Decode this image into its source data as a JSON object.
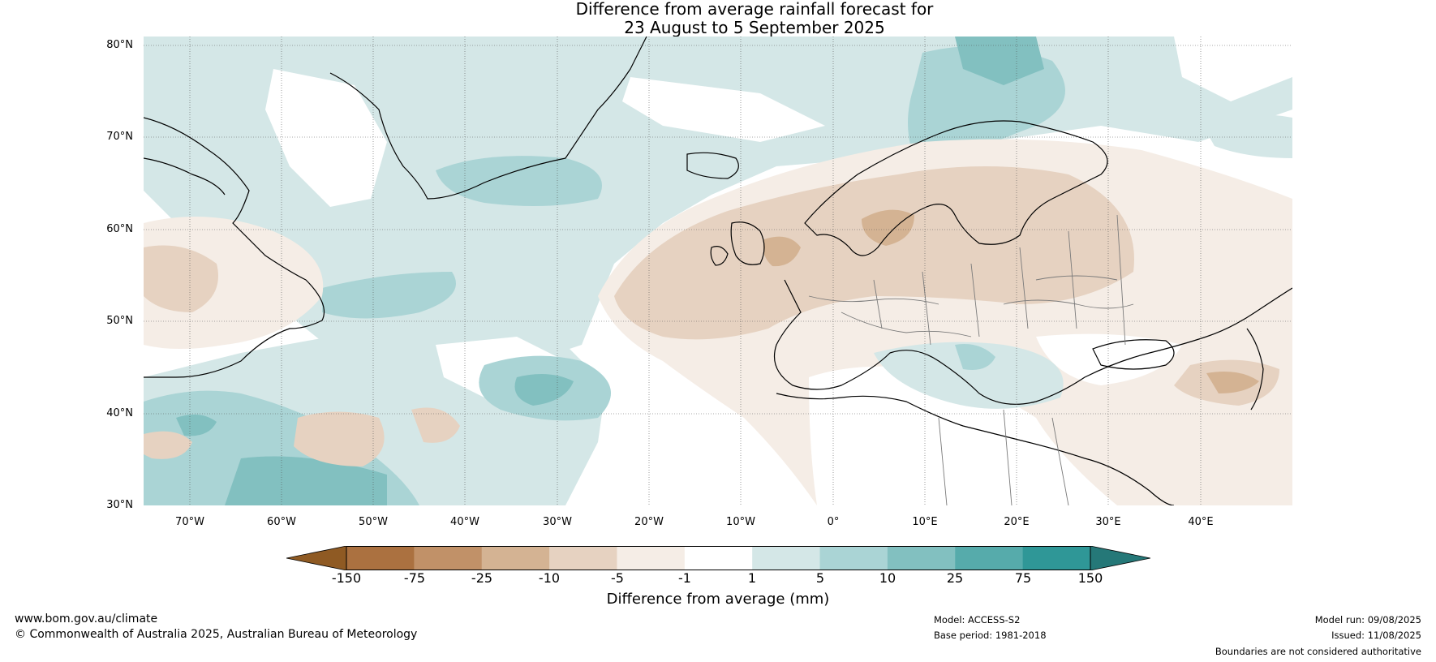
{
  "title": {
    "line1": "Difference from average rainfall forecast for",
    "line2": "23 August to 5 September 2025"
  },
  "map": {
    "projection": "equirectangular",
    "lon_range": [
      -75,
      50
    ],
    "lat_range": [
      30,
      81
    ],
    "lat_ticks": [
      "80°N",
      "70°N",
      "60°N",
      "50°N",
      "40°N",
      "30°N"
    ],
    "lon_ticks": [
      "70°W",
      "60°W",
      "50°W",
      "40°W",
      "30°W",
      "20°W",
      "10°W",
      "0°",
      "10°E",
      "20°E",
      "30°E",
      "40°E"
    ],
    "gridlines": true,
    "regions": [
      {
        "name": "north-america-dry",
        "category": "-5 to -1"
      },
      {
        "name": "greenland-sea-wet",
        "category": "1 to 5"
      },
      {
        "name": "north-atlantic-wet",
        "category": "1 to 5"
      },
      {
        "name": "subtropical-atlantic-wet",
        "category": "10 to 25"
      },
      {
        "name": "scandinavia-dry",
        "category": "-10 to -5"
      },
      {
        "name": "eastern-europe-dry",
        "category": "-10 to -5"
      },
      {
        "name": "caspian-dry",
        "category": "-25 to -10"
      },
      {
        "name": "norway-coast-wet",
        "category": "5 to 10"
      },
      {
        "name": "italy-balkans-wet",
        "category": "1 to 5"
      }
    ]
  },
  "colorbar": {
    "label": "Difference from average (mm)",
    "ticks": [
      "-150",
      "-75",
      "-25",
      "-10",
      "-5",
      "-1",
      "1",
      "5",
      "10",
      "25",
      "75",
      "150"
    ],
    "colors": [
      "#8f5a23",
      "#ab7140",
      "#c19168",
      "#d4b393",
      "#e6d2c1",
      "#f5ede6",
      "#ffffff",
      "#d4e7e7",
      "#aad4d5",
      "#82c0c0",
      "#56abab",
      "#2f9797",
      "#257878"
    ]
  },
  "footer": {
    "website": "www.bom.gov.au/climate",
    "copyright": "© Commonwealth of Australia 2025, Australian Bureau of Meteorology",
    "model": "Model: ACCESS-S2",
    "base_period": "Base period: 1981-2018",
    "model_run": "Model run: 09/08/2025",
    "issued": "Issued: 11/08/2025",
    "disclaimer": "Boundaries are not considered authoritative"
  }
}
